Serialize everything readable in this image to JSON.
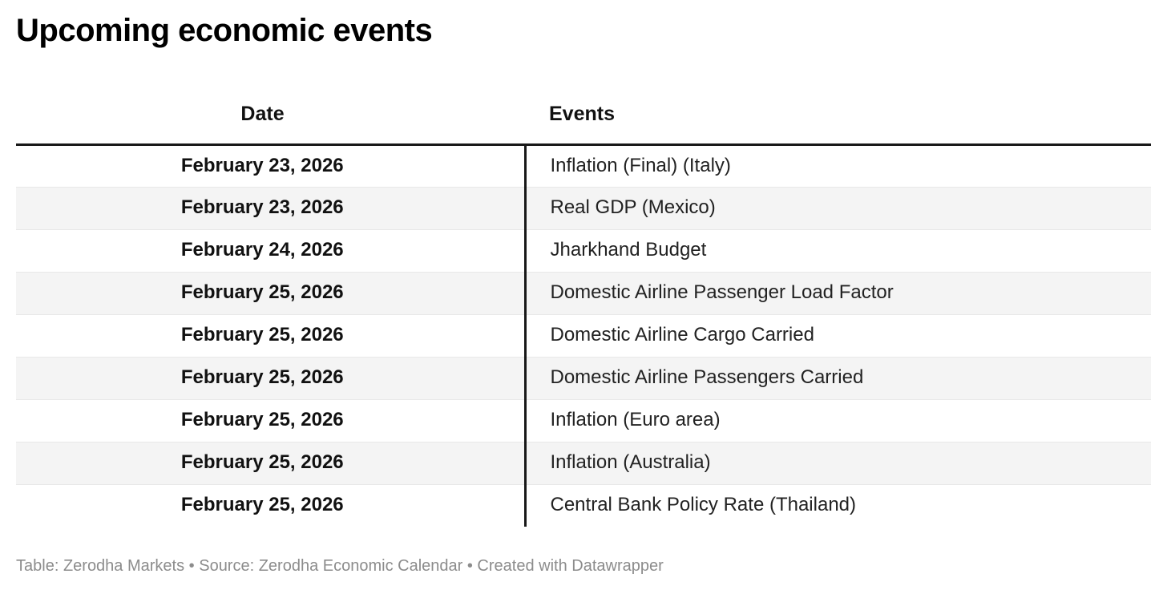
{
  "chart_data": {
    "type": "table",
    "title": "Upcoming economic events",
    "columns": [
      "Date",
      "Events"
    ],
    "rows": [
      {
        "date": "February 23, 2026",
        "event": "Inflation (Final) (Italy)"
      },
      {
        "date": "February 23, 2026",
        "event": "Real GDP (Mexico)"
      },
      {
        "date": "February 24, 2026",
        "event": "Jharkhand Budget"
      },
      {
        "date": "February 25, 2026",
        "event": "Domestic Airline Passenger Load Factor"
      },
      {
        "date": "February 25, 2026",
        "event": "Domestic Airline Cargo Carried"
      },
      {
        "date": "February 25, 2026",
        "event": "Domestic Airline Passengers Carried"
      },
      {
        "date": "February 25, 2026",
        "event": "Inflation (Euro area)"
      },
      {
        "date": "February 25, 2026",
        "event": "Inflation (Australia)"
      },
      {
        "date": "February 25, 2026",
        "event": "Central Bank Policy Rate (Thailand)"
      }
    ],
    "layout_hints": {
      "striped_rows": true,
      "date_column_align": "center",
      "events_column_align": "left"
    }
  },
  "footer": {
    "table_prefix": "Table: ",
    "table_credit": "Zerodha Markets",
    "source_prefix": " • Source: ",
    "source_name": "Zerodha Economic Calendar",
    "created_prefix": " • Created with ",
    "tool_name": "Datawrapper"
  },
  "colors": {
    "title_text": "#000000",
    "date_text": "#111111",
    "event_text": "#222222",
    "row_alt_background": "#f4f4f4",
    "row_separator": "#e8e8e8",
    "table_rule": "#181818",
    "footer_text": "#8c8c8c"
  }
}
